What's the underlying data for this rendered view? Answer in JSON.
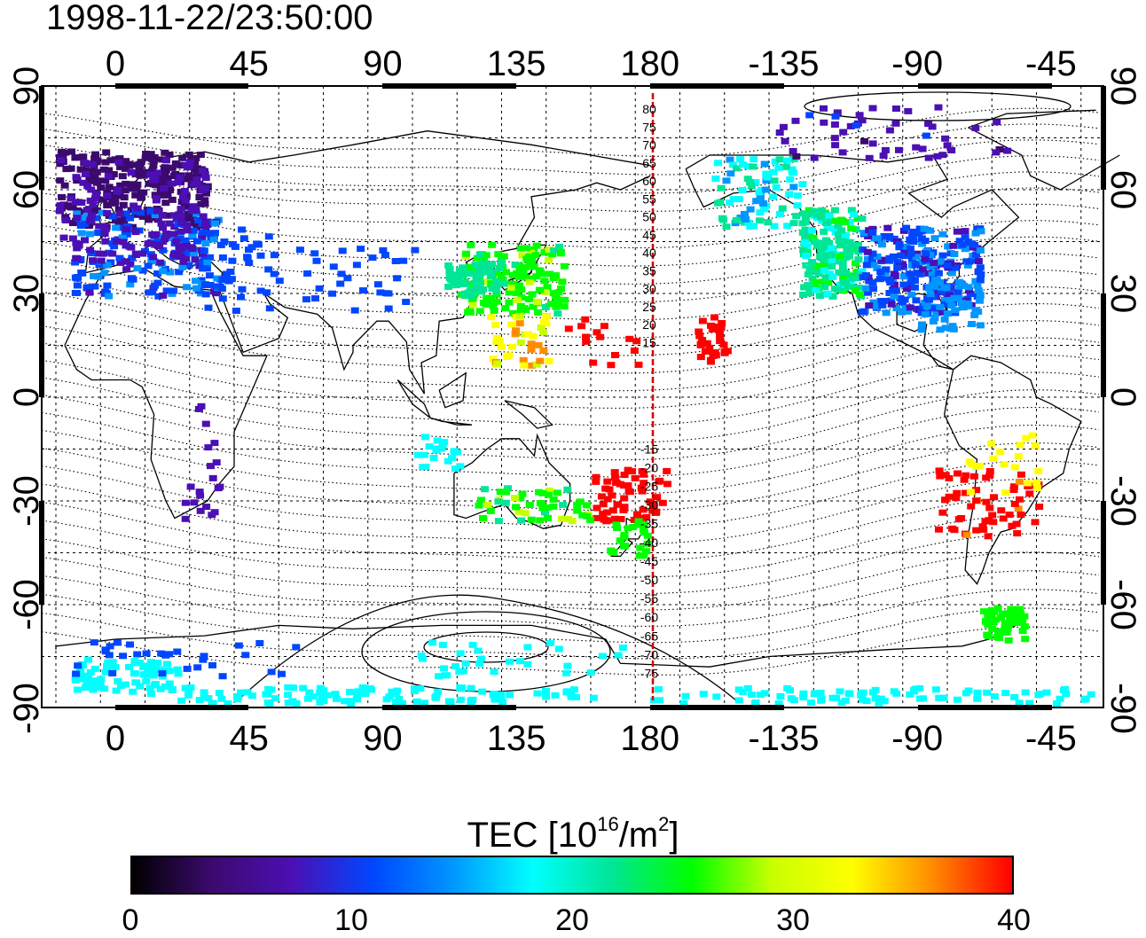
{
  "title": "1998-11-22/23:50:00",
  "map": {
    "lon_ticks_top": [
      "0",
      "45",
      "90",
      "135",
      "180",
      "-135",
      "-90",
      "-45"
    ],
    "lon_ticks_bottom": [
      "0",
      "45",
      "90",
      "135",
      "180",
      "-135",
      "-90",
      "-45"
    ],
    "lat_ticks_left": [
      "90",
      "60",
      "30",
      "0",
      "-30",
      "-60",
      "-90"
    ],
    "lat_ticks_right": [
      "90",
      "60",
      "30",
      "0",
      "-30",
      "-60",
      "-90"
    ],
    "dateline_color": "#d40000",
    "dateline_labels": [
      "80",
      "75",
      "70",
      "65",
      "60",
      "55",
      "50",
      "45",
      "40",
      "35",
      "30",
      "25",
      "20",
      "15",
      "-15",
      "-20",
      "-25",
      "-30",
      "-35",
      "-40",
      "-45",
      "-50",
      "-55",
      "-60",
      "-65",
      "-70",
      "-75"
    ]
  },
  "colorbar": {
    "title_main": "TEC  [10",
    "title_exp1": "16",
    "title_mid": "/m",
    "title_exp2": "2",
    "title_end": "]",
    "tick_labels": [
      "0",
      "10",
      "20",
      "30",
      "40"
    ],
    "colors": [
      "#000000",
      "#3c0a6e",
      "#4b0fb4",
      "#0046ff",
      "#0096ff",
      "#00ffff",
      "#00e696",
      "#00ff00",
      "#c8ff00",
      "#ffff00",
      "#ff8c00",
      "#ff0000"
    ]
  }
}
